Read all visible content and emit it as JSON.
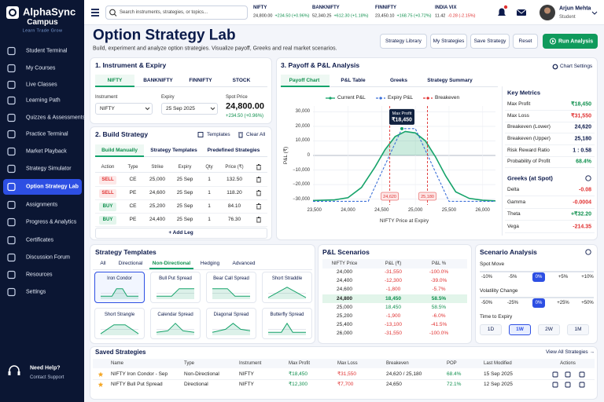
{
  "sidebar": {
    "brand": "AlphaSync",
    "sub": "Campus",
    "tagline": "Learn Trade Grow",
    "nav": [
      "Student Terminal",
      "My Courses",
      "Live Classes",
      "Learning Path",
      "Quizzes & Assessments",
      "Practice Terminal",
      "Market Playback",
      "Strategy Simulator",
      "Option Strategy Lab",
      "Assignments",
      "Progress & Analytics",
      "Certificates",
      "Discussion Forum",
      "Resources",
      "Settings"
    ],
    "active": 8,
    "help": {
      "title": "Need Help?",
      "link": "Contact Support"
    }
  },
  "topbar": {
    "search_placeholder": "Search instruments, strategies, or topics...",
    "tickers": [
      {
        "name": "NIFTY",
        "price": "24,800.00",
        "change": "+234.50 (+0.96%)"
      },
      {
        "name": "BANKNIFTY",
        "price": "52,340.25",
        "change": "+612.30 (+1.18%)"
      },
      {
        "name": "FINNIFTY",
        "price": "23,450.10",
        "change": "+168.75 (+0.72%)"
      },
      {
        "name": "INDIA VIX",
        "price": "11.42",
        "change": "-0.28 (-2.15%)"
      }
    ],
    "user": {
      "name": "Arjun Mehta",
      "role": "Student"
    }
  },
  "header": {
    "title": "Option Strategy Lab",
    "subtitle": "Build, experiment and analyze option strategies. Visualize payoff, Greeks and real market scenarios.",
    "buttons": [
      "Strategy Library",
      "My Strategies",
      "Save Strategy",
      "Reset"
    ],
    "primary_button": "Run Analysis"
  },
  "instrument": {
    "title": "1. Instrument & Expiry",
    "tabs": [
      "NIFTY",
      "BANKNIFTY",
      "FINNIFTY",
      "STOCK"
    ],
    "active_tab": 0,
    "instrument_label": "Instrument",
    "instrument": "NIFTY",
    "expiry_label": "Expiry",
    "expiry": "25 Sep 2025",
    "spot_label": "Spot Price",
    "spot": "24,800.00",
    "spot_change": "+234.50 (+0.96%)"
  },
  "build": {
    "title": "2. Build Strategy",
    "actions": [
      "Templates",
      "Clear All"
    ],
    "tabs": [
      "Build Manually",
      "Strategy Templates",
      "Predefined Strategies"
    ],
    "active_tab": 0,
    "columns": [
      "Action",
      "Type",
      "Strike",
      "Expiry",
      "Qty",
      "Price (₹)"
    ],
    "legs": [
      [
        "SELL",
        "CE",
        "25,000",
        "25 Sep",
        "1",
        "132.50"
      ],
      [
        "SELL",
        "PE",
        "24,600",
        "25 Sep",
        "1",
        "118.20"
      ],
      [
        "BUY",
        "CE",
        "25,200",
        "25 Sep",
        "1",
        "84.10"
      ],
      [
        "BUY",
        "PE",
        "24,400",
        "25 Sep",
        "1",
        "76.30"
      ]
    ],
    "add_leg": "+ Add Leg"
  },
  "payoff": {
    "title": "3. Payoff & P&L Analysis",
    "settings": "Chart Settings",
    "tabs": [
      "Payoff Chart",
      "P&L Table",
      "Greeks",
      "Strategy Summary"
    ],
    "active_tab": 0
  },
  "chart_data": {
    "type": "line",
    "ylabel": "P&L (₹)",
    "xlabel": "NIFTY Price at Expiry",
    "xlim": [
      23480,
      26190
    ],
    "ylim": [
      -34000,
      34000
    ],
    "xticks": [
      {
        "value": 23500,
        "label": "23,500"
      },
      {
        "value": 24000,
        "label": "24,000"
      },
      {
        "value": 24500,
        "label": "24,500"
      },
      {
        "value": 25000,
        "label": "25,000"
      },
      {
        "value": 25500,
        "label": "25,500"
      },
      {
        "value": 26000,
        "label": "26,000"
      }
    ],
    "yticks": [
      {
        "value": 30000,
        "label": "30,000"
      },
      {
        "value": 20000,
        "label": "20,000"
      },
      {
        "value": 10000,
        "label": "10,000"
      },
      0,
      {
        "value": -10000,
        "label": "−10,000"
      },
      {
        "value": -20000,
        "label": "−20,000"
      },
      {
        "value": -30000,
        "label": "−30,000"
      }
    ],
    "grid": true,
    "series": [
      {
        "name": "Current P&L",
        "color": "#16a36a",
        "x": [
          23480,
          23800,
          24000,
          24200,
          24400,
          24550,
          24700,
          24850,
          25000,
          25150,
          25300,
          25450,
          25600,
          25800,
          26000,
          26190
        ],
        "values": [
          -31000,
          -30500,
          -29000,
          -22000,
          -8000,
          4000,
          13000,
          16500,
          15500,
          10000,
          -1000,
          -14000,
          -25000,
          -29500,
          -30800,
          -31200
        ]
      },
      {
        "name": "Expiry P&L",
        "color": "#3b6fd8",
        "x": [
          23480,
          24300,
          24800,
          25000,
          25500,
          26190
        ],
        "values": [
          -31550,
          -31550,
          18450,
          18450,
          -31550,
          -31550
        ]
      }
    ],
    "breakeven": {
      "name": "Breakeven",
      "color": "#e03131",
      "values": [
        24620,
        25180
      ],
      "value_labels": [
        "24,620",
        "25,180"
      ]
    },
    "max_profit": {
      "label": "Max Profit",
      "x": 24800,
      "value": 18450,
      "value_label": "₹18,450"
    }
  },
  "metrics": {
    "title": "Key Metrics",
    "rows": [
      {
        "label": "Max Profit",
        "value": "₹18,450",
        "color": "#0e8f4d"
      },
      {
        "label": "Max Loss",
        "value": "₹31,550",
        "color": "#e03131"
      },
      {
        "label": "Breakeven (Lower)",
        "value": "24,620",
        "color": "#0c1a4b"
      },
      {
        "label": "Breakeven (Upper)",
        "value": "25,180",
        "color": "#0c1a4b"
      },
      {
        "label": "Risk Reward Ratio",
        "value": "1 : 0.58",
        "color": "#0c1a4b"
      },
      {
        "label": "Probability of Profit",
        "value": "68.4%",
        "color": "#0e8f4d"
      }
    ]
  },
  "greeks": {
    "title": "Greeks (at Spot)",
    "rows": [
      {
        "label": "Delta",
        "value": "-0.08",
        "color": "#e03131"
      },
      {
        "label": "Gamma",
        "value": "-0.0004",
        "color": "#e03131"
      },
      {
        "label": "Theta",
        "value": "+₹32.20",
        "color": "#0e8f4d"
      },
      {
        "label": "Vega",
        "value": "-214.35",
        "color": "#e03131"
      }
    ]
  },
  "templates": {
    "title": "Strategy Templates",
    "tabs": [
      "All",
      "Directional",
      "Non-Directional",
      "Hedging",
      "Advanced"
    ],
    "active_tab": 2,
    "cards": [
      "Iron Condor",
      "Bull Put Spread",
      "Bear Call Spread",
      "Short Straddle",
      "Short Strangle",
      "Calendar Spread",
      "Diagonal Spread",
      "Butterfly Spread"
    ],
    "active_card": 0
  },
  "scenarios": {
    "title": "P&L Scenarios",
    "columns": [
      "NIFTY Price",
      "P&L (₹)",
      "P&L %"
    ],
    "rows": [
      [
        "24,000",
        "-31,550",
        "-100.0%"
      ],
      [
        "24,400",
        "-12,300",
        "-39.0%"
      ],
      [
        "24,600",
        "-1,800",
        "-5.7%"
      ],
      [
        "24,800",
        "18,450",
        "58.5%"
      ],
      [
        "25,000",
        "18,450",
        "58.5%"
      ],
      [
        "25,200",
        "-1,900",
        "-6.0%"
      ],
      [
        "25,400",
        "-13,100",
        "-41.5%"
      ],
      [
        "26,000",
        "-31,550",
        "-100.0%"
      ]
    ],
    "highlight_row": 3
  },
  "scenario_analysis": {
    "title": "Scenario Analysis",
    "spot": {
      "label": "Spot Move",
      "options": [
        "-10%",
        "-5%",
        "0%",
        "+5%",
        "+10%"
      ],
      "active": 2
    },
    "vol": {
      "label": "Volatility Change",
      "options": [
        "-50%",
        "-25%",
        "0%",
        "+25%",
        "+50%"
      ],
      "active": 2
    },
    "time": {
      "label": "Time to Expiry",
      "options": [
        "1D",
        "1W",
        "2W",
        "1M"
      ],
      "active": 1
    }
  },
  "saved": {
    "title": "Saved Strategies",
    "link": "View All Strategies →",
    "columns": [
      "Name",
      "Type",
      "Instrument",
      "Max Profit",
      "Max Loss",
      "Breakeven",
      "POP",
      "Last Modified",
      "Actions"
    ],
    "rows": [
      [
        "NIFTY Iron Condor - Sep",
        "Non-Directional",
        "NIFTY",
        "₹18,450",
        "₹31,550",
        "24,620 / 25,180",
        "68.4%",
        "15 Sep 2025"
      ],
      [
        "NIFTY Bull Put Spread",
        "Directional",
        "NIFTY",
        "₹12,300",
        "₹7,700",
        "24,650",
        "72.1%",
        "12 Sep 2025"
      ]
    ]
  }
}
